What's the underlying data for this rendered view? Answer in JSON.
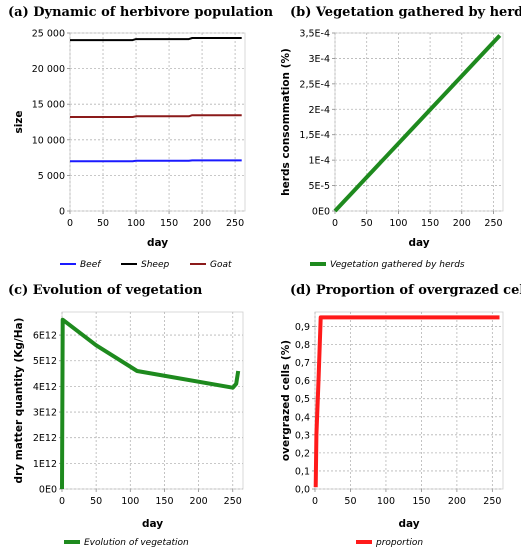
{
  "chart_data": [
    {
      "type": "line",
      "title": "(a) Dynamic of herbivore population",
      "xlabel": "day",
      "ylabel": "size",
      "xlim": [
        0,
        265
      ],
      "ylim": [
        0,
        25000
      ],
      "xticks": [
        0,
        50,
        100,
        150,
        200,
        250
      ],
      "yticks": [
        0,
        5000,
        10000,
        15000,
        20000,
        25000
      ],
      "ytick_labels": [
        "0",
        "5 000",
        "10 000",
        "15 000",
        "20 000",
        "25 000"
      ],
      "grid": true,
      "legend_position": "bottom",
      "series": [
        {
          "name": "Beef",
          "color": "#1a1aff",
          "x": [
            0,
            95,
            100,
            180,
            185,
            260
          ],
          "y": [
            7000,
            7000,
            7050,
            7050,
            7100,
            7100
          ]
        },
        {
          "name": "Sheep",
          "color": "#000000",
          "x": [
            0,
            95,
            100,
            180,
            185,
            260
          ],
          "y": [
            24000,
            24000,
            24150,
            24150,
            24300,
            24300
          ]
        },
        {
          "name": "Goat",
          "color": "#8b1a1a",
          "x": [
            0,
            95,
            100,
            180,
            185,
            260
          ],
          "y": [
            13200,
            13200,
            13300,
            13300,
            13450,
            13450
          ]
        }
      ]
    },
    {
      "type": "line",
      "title": "(b) Vegetation gathered by herds",
      "xlabel": "day",
      "ylabel": "herds consommation (%)",
      "xlim": [
        0,
        265
      ],
      "ylim": [
        0,
        0.00035
      ],
      "xticks": [
        0,
        50,
        100,
        150,
        200,
        250
      ],
      "yticks": [
        0,
        5e-05,
        0.0001,
        0.00015,
        0.0002,
        0.00025,
        0.0003,
        0.00035
      ],
      "ytick_labels": [
        "0E0",
        "5E-5",
        "1E-4",
        "1,5E-4",
        "2E-4",
        "2,5E-4",
        "3E-4",
        "3,5E-4"
      ],
      "grid": true,
      "legend_position": "bottom",
      "series": [
        {
          "name": "Vegetation gathered by herds",
          "color": "#1e8a1e",
          "x": [
            0,
            260
          ],
          "y": [
            0,
            0.000345
          ]
        }
      ]
    },
    {
      "type": "line",
      "title": "(c) Evolution of vegetation",
      "xlabel": "day",
      "ylabel": "dry matter quantity (Kg/Ha)",
      "xlim": [
        0,
        265
      ],
      "ylim": [
        0,
        6900000000000.0
      ],
      "xticks": [
        0,
        50,
        100,
        150,
        200,
        250
      ],
      "yticks": [
        0,
        1000000000000.0,
        2000000000000.0,
        3000000000000.0,
        4000000000000.0,
        5000000000000.0,
        6000000000000.0
      ],
      "ytick_labels": [
        "0E0",
        "1E12",
        "2E12",
        "3E12",
        "4E12",
        "5E12",
        "6E12"
      ],
      "grid": true,
      "legend_position": "bottom",
      "series": [
        {
          "name": "Evolution of vegetation",
          "color": "#1e8a1e",
          "x": [
            0,
            1,
            50,
            110,
            250,
            255,
            258
          ],
          "y": [
            0,
            6600000000000.0,
            5600000000000.0,
            4600000000000.0,
            3950000000000.0,
            4100000000000.0,
            4600000000000.0
          ]
        }
      ]
    },
    {
      "type": "line",
      "title": "(d) Proportion of overgrazed cells",
      "xlabel": "day",
      "ylabel": "overgrazed cells (%)",
      "xlim": [
        0,
        265
      ],
      "ylim": [
        0,
        0.98
      ],
      "xticks": [
        0,
        50,
        100,
        150,
        200,
        250
      ],
      "yticks": [
        0,
        0.1,
        0.2,
        0.3,
        0.4,
        0.5,
        0.6,
        0.7,
        0.8,
        0.9
      ],
      "ytick_labels": [
        "0,0",
        "0,1",
        "0,2",
        "0,3",
        "0,4",
        "0,5",
        "0,6",
        "0,7",
        "0,8",
        "0,9"
      ],
      "grid": true,
      "legend_position": "bottom",
      "series": [
        {
          "name": "proportion",
          "color": "#ff1a1a",
          "x": [
            1,
            2,
            5,
            8,
            260
          ],
          "y": [
            0.01,
            0.3,
            0.6,
            0.95,
            0.95
          ]
        }
      ]
    }
  ]
}
